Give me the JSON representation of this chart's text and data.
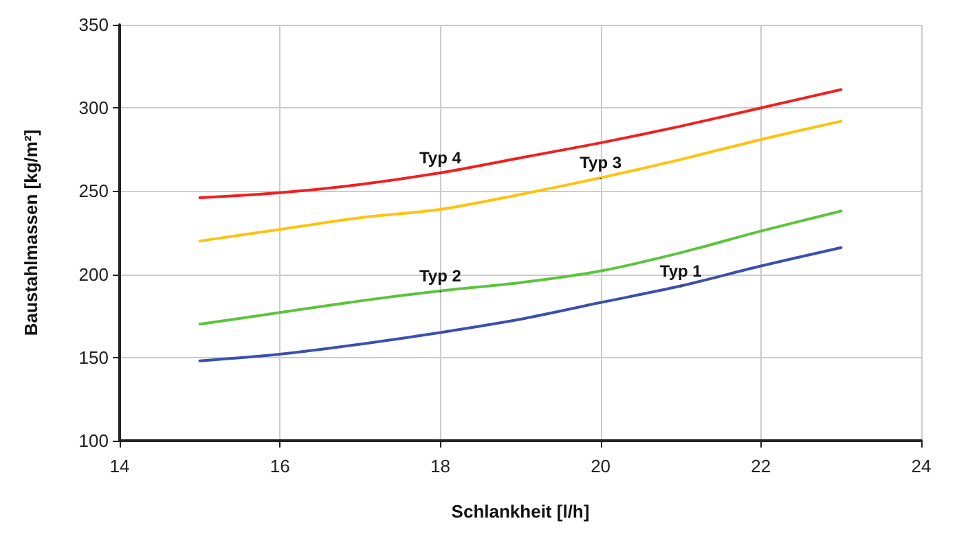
{
  "chart_data": {
    "type": "line",
    "xlabel": "Schlankheit [l/h]",
    "ylabel": "Baustahlmassen [kg/m²]",
    "x": [
      15,
      16,
      17,
      18,
      19,
      20,
      21,
      22,
      23
    ],
    "series": [
      {
        "name": "Typ 1",
        "color": "#3a4fb0",
        "values": [
          148,
          152,
          158,
          165,
          173,
          183,
          193,
          205,
          216
        ]
      },
      {
        "name": "Typ 2",
        "color": "#5cc43c",
        "values": [
          170,
          177,
          184,
          190,
          195,
          202,
          213,
          226,
          238
        ]
      },
      {
        "name": "Typ 3",
        "color": "#ffc20e",
        "values": [
          220,
          227,
          234,
          239,
          248,
          258,
          269,
          281,
          292
        ]
      },
      {
        "name": "Typ 4",
        "color": "#f02020",
        "values": [
          246,
          249,
          254,
          261,
          270,
          279,
          289,
          300,
          311
        ]
      }
    ],
    "xlim": [
      14,
      24
    ],
    "xticks": [
      14,
      16,
      18,
      20,
      22,
      24
    ],
    "ylim": [
      100,
      350
    ],
    "yticks": [
      100,
      150,
      200,
      250,
      300,
      350
    ],
    "grid": true,
    "legend": false,
    "marker": "none",
    "line_style": "solid"
  }
}
